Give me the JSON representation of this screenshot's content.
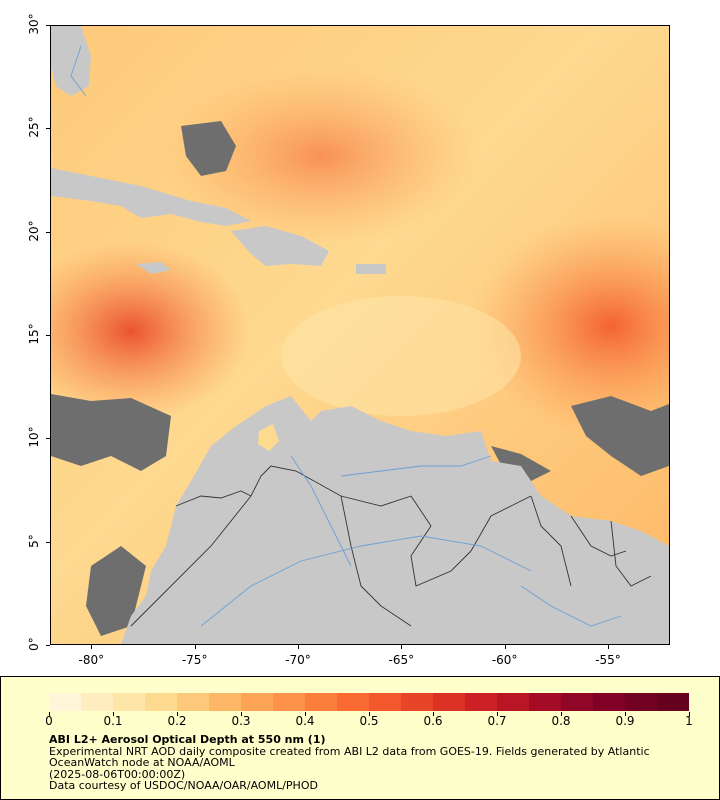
{
  "map": {
    "title": "ABI L2+ Aerosol Optical Depth at 550 nm (1)",
    "lat_range": [
      0,
      30
    ],
    "lon_range": [
      -82,
      -52
    ],
    "lat_ticks": [
      "0°",
      "5°",
      "10°",
      "15°",
      "20°",
      "25°",
      "30°"
    ],
    "lon_ticks": [
      "-80°",
      "-75°",
      "-70°",
      "-65°",
      "-60°",
      "-55°"
    ],
    "colors": {
      "land": "#c8c8c8",
      "no_data": "#6e6e6e",
      "borders": "#333333",
      "rivers": "#6d9fd6",
      "legend_bg": "#ffffcc"
    }
  },
  "colorbar": {
    "min": 0,
    "max": 1,
    "labels": [
      "0",
      "0.1",
      "0.2",
      "0.3",
      "0.4",
      "0.5",
      "0.6",
      "0.7",
      "0.8",
      "0.9",
      "1"
    ],
    "colors": [
      "#fff5d8",
      "#ffedc0",
      "#fee5a8",
      "#fed990",
      "#fec97a",
      "#feb766",
      "#fea555",
      "#fd9248",
      "#fc7e3d",
      "#f96a32",
      "#f3572b",
      "#e84427",
      "#dc3225",
      "#cc2124",
      "#b81525",
      "#a40c26",
      "#900626",
      "#800026",
      "#720022",
      "#66001f"
    ]
  },
  "legend": {
    "line1": "Experimental NRT AOD daily composite created from ABI L2 data from GOES-19. Fields generated by Atlantic OceanWatch node at NOAA/AOML",
    "line2": "(2025-08-06T00:00:00Z)",
    "line3": "Data courtesy of USDOC/NOAA/OAR/AOML/PHOD"
  }
}
